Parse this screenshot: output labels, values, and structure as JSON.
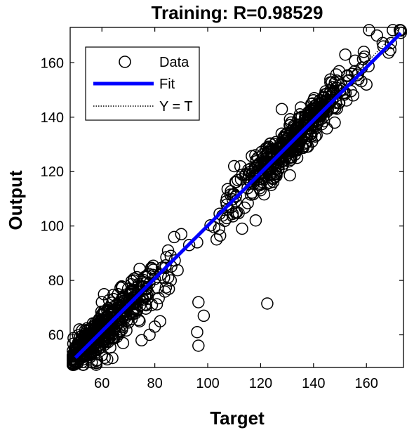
{
  "chart_data": {
    "type": "scatter",
    "title": "Training: R=0.98529",
    "xlabel": "Target",
    "ylabel": "Output",
    "xlim": [
      48,
      174
    ],
    "ylim": [
      48,
      173
    ],
    "xticks": [
      60,
      80,
      100,
      120,
      140,
      160
    ],
    "yticks": [
      60,
      80,
      100,
      120,
      140,
      160
    ],
    "grid": false,
    "legend_position": "top-left",
    "legend": [
      "Data",
      "Fit",
      "Y = T"
    ],
    "fit": {
      "slope": 0.97,
      "intercept": 3.1,
      "color": "#0000ff"
    },
    "identity_line": {
      "color": "#000000",
      "style": "dotted"
    },
    "series": [
      {
        "name": "Data",
        "marker": "open-circle",
        "clusters": [
          {
            "x_center": 54,
            "y_center": 57,
            "x_spread": 4,
            "noise": 3.0,
            "count": 180
          },
          {
            "x_center": 63,
            "y_center": 64,
            "x_spread": 5,
            "noise": 4.0,
            "count": 200
          },
          {
            "x_center": 73,
            "y_center": 72,
            "x_spread": 4,
            "noise": 4.5,
            "count": 80
          },
          {
            "x_center": 84,
            "y_center": 83,
            "x_spread": 3,
            "noise": 5.0,
            "count": 18
          },
          {
            "x_center": 110,
            "y_center": 110,
            "x_spread": 4,
            "noise": 4.0,
            "count": 30
          },
          {
            "x_center": 121,
            "y_center": 121,
            "x_spread": 5,
            "noise": 4.0,
            "count": 120
          },
          {
            "x_center": 132,
            "y_center": 131,
            "x_spread": 5,
            "noise": 4.0,
            "count": 200
          },
          {
            "x_center": 143,
            "y_center": 143,
            "x_spread": 4,
            "noise": 3.5,
            "count": 110
          },
          {
            "x_center": 155,
            "y_center": 155,
            "x_spread": 4,
            "noise": 3.0,
            "count": 25
          },
          {
            "x_center": 168,
            "y_center": 168,
            "x_spread": 3,
            "noise": 2.5,
            "count": 8
          }
        ],
        "outliers": [
          [
            96.5,
            72
          ],
          [
            98.5,
            67
          ],
          [
            96,
            61
          ],
          [
            96.5,
            56
          ],
          [
            122.5,
            71.5
          ],
          [
            83.5,
            81
          ],
          [
            86,
            80
          ],
          [
            90,
            97
          ],
          [
            93,
            93
          ],
          [
            96,
            94
          ],
          [
            86,
            89
          ],
          [
            85,
            91
          ],
          [
            82,
            65
          ],
          [
            80,
            63
          ],
          [
            78,
            60
          ],
          [
            75,
            58
          ],
          [
            104.5,
            104.5
          ],
          [
            107,
            109
          ],
          [
            113,
            99
          ],
          [
            111,
            105
          ],
          [
            118,
            126
          ],
          [
            110,
            122
          ],
          [
            128,
            143
          ],
          [
            152,
            163
          ],
          [
            155,
            148
          ],
          [
            148,
            138
          ],
          [
            161,
            172
          ],
          [
            164,
            170
          ],
          [
            170,
            172
          ],
          [
            173,
            171
          ],
          [
            160,
            152
          ],
          [
            62,
            51
          ],
          [
            68,
            57
          ],
          [
            72,
            80
          ],
          [
            60,
            72
          ]
        ]
      }
    ]
  }
}
